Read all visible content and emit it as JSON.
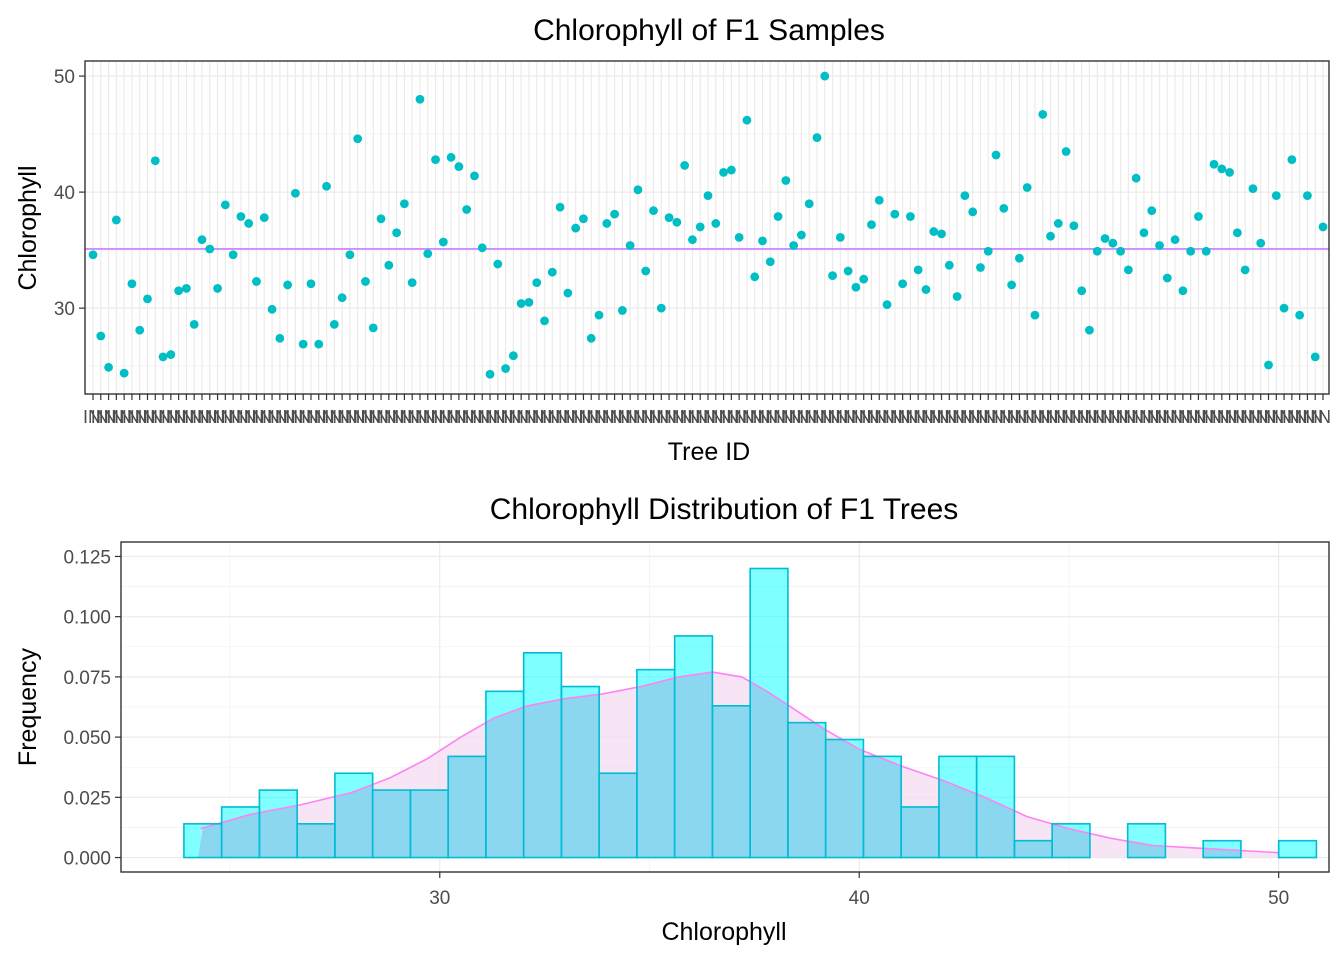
{
  "chart_data": [
    {
      "type": "scatter",
      "title": "Chlorophyll of F1 Samples",
      "xlabel": "Tree ID",
      "ylabel": "Chlorophyll",
      "ylim": [
        22.6,
        51.3
      ],
      "yticks": [
        30,
        40,
        50
      ],
      "x_tick_label_prefix": "IN",
      "mean_line": 35.1,
      "colors": {
        "points": "#00bfc4",
        "mean_line": "#c77cff",
        "x_tick_text": "#4d4d4d"
      },
      "grid": true,
      "values": [
        34.6,
        27.6,
        24.9,
        37.6,
        24.4,
        32.1,
        28.1,
        30.8,
        42.7,
        25.8,
        26.0,
        31.5,
        31.7,
        28.6,
        35.9,
        35.1,
        31.7,
        38.9,
        34.6,
        37.9,
        37.3,
        32.3,
        37.8,
        29.9,
        27.4,
        32.0,
        39.9,
        26.9,
        32.1,
        26.9,
        40.5,
        28.6,
        30.9,
        34.6,
        44.6,
        32.3,
        28.3,
        37.7,
        33.7,
        36.5,
        39.0,
        32.2,
        48.0,
        34.7,
        42.8,
        35.7,
        43.0,
        42.2,
        38.5,
        41.4,
        35.2,
        24.3,
        33.8,
        24.8,
        25.9,
        30.4,
        30.5,
        32.2,
        28.9,
        33.1,
        38.7,
        31.3,
        36.9,
        37.7,
        27.4,
        29.4,
        37.3,
        38.1,
        29.8,
        35.4,
        40.2,
        33.2,
        38.4,
        30.0,
        37.8,
        37.4,
        42.3,
        35.9,
        37.0,
        39.7,
        37.3,
        41.7,
        41.9,
        36.1,
        46.2,
        32.7,
        35.8,
        34.0,
        37.9,
        41.0,
        35.4,
        36.3,
        39.0,
        44.7,
        50.0,
        32.8,
        36.1,
        33.2,
        31.8,
        32.5,
        37.2,
        39.3,
        30.3,
        38.1,
        32.1,
        37.9,
        33.3,
        31.6,
        36.6,
        36.4,
        33.7,
        31.0,
        39.7,
        38.3,
        33.5,
        34.9,
        43.2,
        38.6,
        32.0,
        34.3,
        40.4,
        29.4,
        46.7,
        36.2,
        37.3,
        43.5,
        37.1,
        31.5,
        28.1,
        34.9,
        36.0,
        35.6,
        34.9,
        33.3,
        41.2,
        36.5,
        38.4,
        35.4,
        32.6,
        35.9,
        31.5,
        34.9,
        37.9,
        34.9,
        42.4,
        42.0,
        41.7,
        36.5,
        33.3,
        40.3,
        35.6,
        25.1,
        39.7,
        30.0,
        42.8,
        29.4,
        39.7,
        25.8,
        37.0
      ]
    },
    {
      "type": "bar",
      "title": "Chlorophyll Distribution of F1 Trees",
      "xlabel": "Chlorophyll",
      "ylabel": "Frequency",
      "xlim": [
        22.4,
        51.2
      ],
      "ylim": [
        -0.006,
        0.131
      ],
      "xticks": [
        30,
        40,
        50
      ],
      "yticks": [
        "0.000",
        "0.025",
        "0.050",
        "0.075",
        "0.100",
        "0.125"
      ],
      "bin_width": 0.9,
      "bin_start": 23.9,
      "hist_values": [
        0.014,
        0.021,
        0.028,
        0.014,
        0.035,
        0.028,
        0.028,
        0.042,
        0.069,
        0.085,
        0.071,
        0.035,
        0.078,
        0.092,
        0.063,
        0.12,
        0.056,
        0.049,
        0.042,
        0.021,
        0.042,
        0.042,
        0.007,
        0.014,
        0.0,
        0.014,
        0.0,
        0.007,
        0.0,
        0.007
      ],
      "density_x": [
        24.3,
        25.5,
        26.7,
        27.9,
        28.8,
        29.7,
        30.5,
        31.3,
        32.1,
        33.0,
        33.9,
        34.8,
        35.7,
        36.5,
        37.2,
        37.8,
        38.5,
        39.2,
        40.0,
        41.0,
        42.0,
        43.0,
        44.0,
        45.0,
        46.0,
        47.0,
        48.0,
        49.0,
        50.0
      ],
      "density_y": [
        0.012,
        0.018,
        0.022,
        0.027,
        0.033,
        0.041,
        0.05,
        0.058,
        0.063,
        0.066,
        0.068,
        0.071,
        0.075,
        0.077,
        0.075,
        0.069,
        0.061,
        0.053,
        0.045,
        0.038,
        0.032,
        0.025,
        0.017,
        0.012,
        0.008,
        0.005,
        0.004,
        0.003,
        0.002
      ],
      "colors": {
        "hist_fill": "#00ffff",
        "hist_overlap_fill": "#8ad7ef",
        "hist_stroke": "#00bcd4",
        "density_fill": "#f4dcf2",
        "density_line": "#ff82f5"
      },
      "grid": true
    }
  ]
}
